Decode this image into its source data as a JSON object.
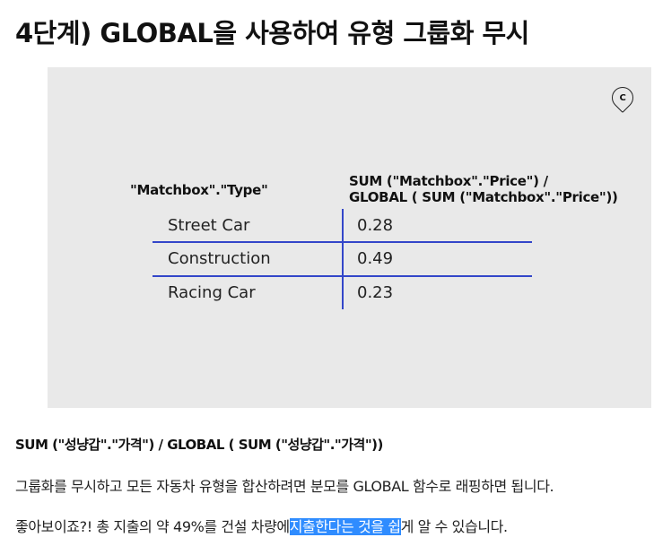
{
  "heading": "4단계) GLOBAL을 사용하여 유형 그룹화 무시",
  "figure": {
    "logo_letter": "C",
    "logo_icon": "brand-logo-icon",
    "col1_header": "\"Matchbox\".\"Type\"",
    "col2_header_line1": "SUM (\"Matchbox\".\"Price\") /",
    "col2_header_line2": "GLOBAL ( SUM (\"Matchbox\".\"Price\"))",
    "rows": [
      {
        "type": "Street Car",
        "value": "0.28"
      },
      {
        "type": "Construction",
        "value": "0.49"
      },
      {
        "type": "Racing Car",
        "value": "0.23"
      }
    ],
    "line_color": "#3346c9"
  },
  "caption": "SUM (\"성냥갑\".\"가격\") / GLOBAL ( SUM (\"성냥갑\".\"가격\"))",
  "paragraph1": "그룹화를 무시하고 모든 자동차 유형을 합산하려면 분모를 GLOBAL 함수로 래핑하면 됩니다.",
  "paragraph2": {
    "before": "좋아보이죠?! 총 지출의 약 49%를 건설 차량에",
    "highlighted": "지출한다는 것을 쉽",
    "after": "게 알 수 있습니다.",
    "highlight_color": "#2f8cff"
  }
}
